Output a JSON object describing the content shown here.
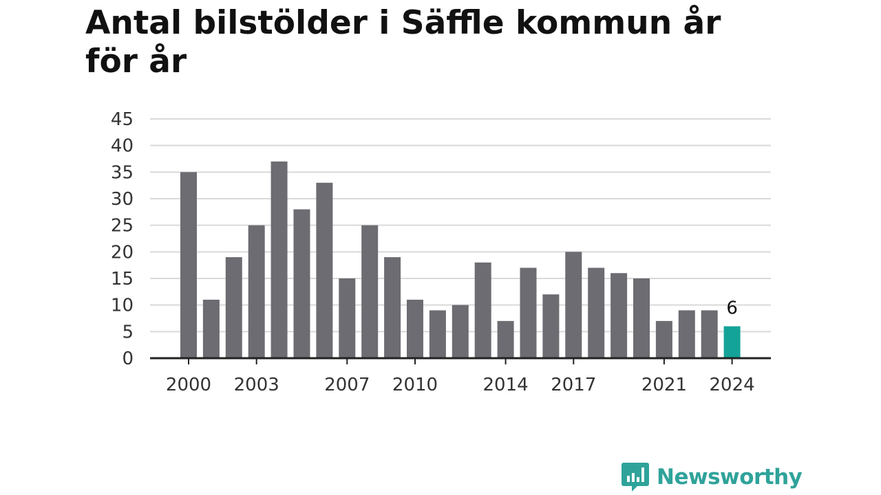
{
  "chart_data": {
    "type": "bar",
    "title": "Antal bilstölder i Säffle kommun år för år",
    "xlabel": "",
    "ylabel": "",
    "categories": [
      "2000",
      "2001",
      "2002",
      "2003",
      "2004",
      "2005",
      "2006",
      "2007",
      "2008",
      "2009",
      "2010",
      "2011",
      "2012",
      "2013",
      "2014",
      "2015",
      "2016",
      "2017",
      "2018",
      "2019",
      "2020",
      "2021",
      "2022",
      "2023",
      "2024"
    ],
    "values": [
      35,
      11,
      19,
      25,
      37,
      28,
      33,
      15,
      25,
      19,
      11,
      9,
      10,
      18,
      7,
      17,
      12,
      20,
      17,
      16,
      15,
      7,
      9,
      9,
      6
    ],
    "x_tick_labels": [
      "2000",
      "2003",
      "2007",
      "2010",
      "2014",
      "2017",
      "2021",
      "2024"
    ],
    "y_ticks": [
      0,
      5,
      10,
      15,
      20,
      25,
      30,
      35,
      40,
      45
    ],
    "ylim": [
      0,
      45
    ],
    "grid": true,
    "highlight": {
      "category": "2024",
      "label": "6"
    },
    "colors": {
      "bar": "#6d6c72",
      "highlight": "#14a398",
      "grid": "#d9d9d9",
      "axis": "#222222"
    }
  },
  "brand": {
    "name": "Newsworthy",
    "icon": "newsworthy-logo-icon",
    "color": "#2fa39a"
  }
}
